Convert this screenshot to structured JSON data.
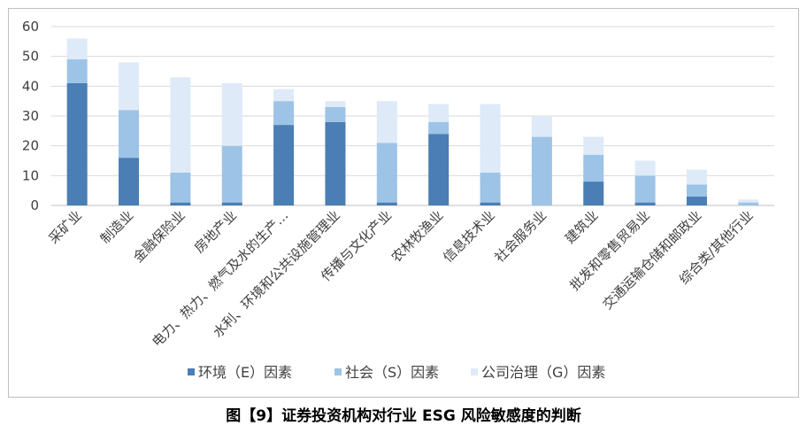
{
  "caption": "图【9】证券投资机构对行业 ESG 风险敏感度的判断",
  "chart_data": {
    "type": "bar",
    "stacked": true,
    "categories": [
      "采矿业",
      "制造业",
      "金融保险业",
      "房地产业",
      "电力、热力、燃气及水的生产…",
      "水利、环境和公共设施管理业",
      "传播与文化产业",
      "农林牧渔业",
      "信息技术业",
      "社会服务业",
      "建筑业",
      "批发和零售贸易业",
      "交通运输仓储和邮政业",
      "综合类/其他行业"
    ],
    "series": [
      {
        "name": "环境（E）因素",
        "color": "#4a7eb4",
        "values": [
          41,
          16,
          1,
          1,
          27,
          28,
          1,
          24,
          1,
          0,
          8,
          1,
          3,
          0
        ]
      },
      {
        "name": "社会（S）因素",
        "color": "#9dc3e6",
        "values": [
          8,
          16,
          10,
          19,
          8,
          5,
          20,
          4,
          10,
          23,
          9,
          9,
          4,
          1
        ]
      },
      {
        "name": "公司治理（G）因素",
        "color": "#deeaf7",
        "values": [
          7,
          16,
          32,
          21,
          4,
          2,
          14,
          6,
          23,
          7,
          6,
          5,
          5,
          1
        ]
      }
    ],
    "y_ticks": [
      "0",
      "10",
      "20",
      "30",
      "40",
      "50",
      "60"
    ],
    "ylim": [
      0,
      60
    ],
    "grid": true,
    "legend_position": "bottom"
  }
}
